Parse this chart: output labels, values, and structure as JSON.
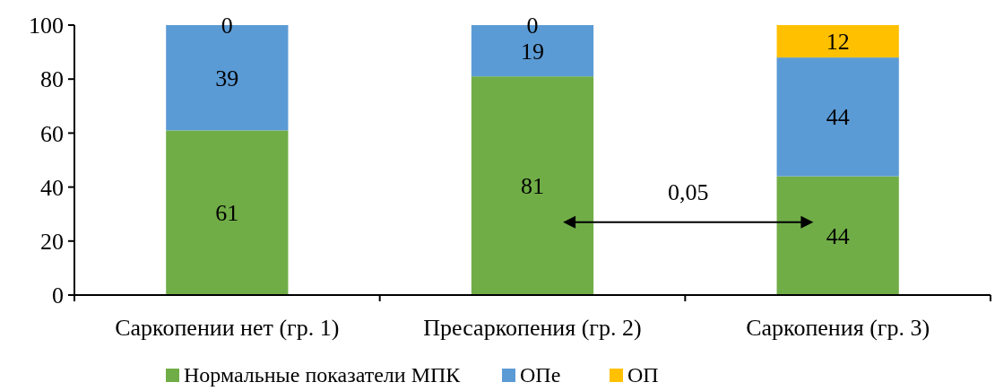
{
  "chart_data": {
    "type": "bar",
    "stacked": true,
    "categories": [
      "Саркопении нет (гр. 1)",
      "Пресаркопения (гр. 2)",
      "Саркопения (гр. 3)"
    ],
    "series": [
      {
        "name": "Нормальные показатели МПК",
        "color": "#70ad47",
        "values": [
          61,
          81,
          44
        ]
      },
      {
        "name": "ОПе",
        "color": "#5b9bd5",
        "values": [
          39,
          19,
          44
        ]
      },
      {
        "name": "ОП",
        "color": "#ffc000",
        "values": [
          0,
          0,
          12
        ]
      }
    ],
    "ylim": [
      0,
      100
    ],
    "yticks": [
      0,
      20,
      40,
      60,
      80,
      100
    ],
    "grid": false,
    "legend": "bottom",
    "data_labels": true,
    "annotations": [
      "0,05"
    ]
  }
}
